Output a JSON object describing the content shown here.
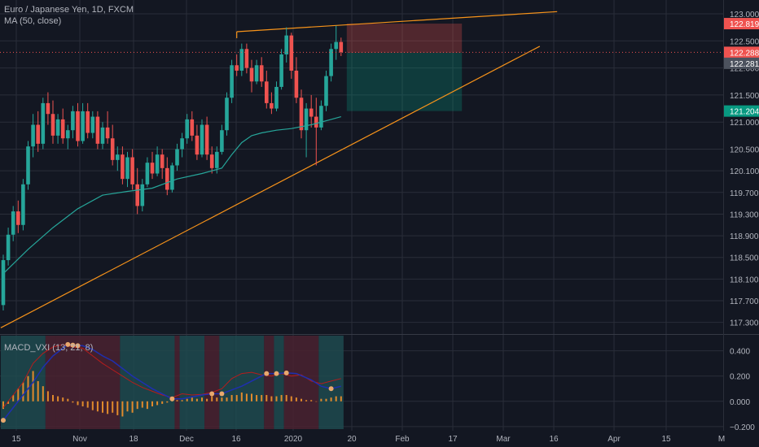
{
  "title": "Euro / Japanese Yen, 1D, FXCM",
  "ma_label": "MA (50, close)",
  "macd_label": "MACD_VXI (13, 21, 8)",
  "colors": {
    "background": "#131722",
    "grid": "#2a2e39",
    "up": "#26a69a",
    "down": "#ef5350",
    "ma": "#26a69a",
    "trendline": "#f7931a",
    "price_line": "#ef5350",
    "text": "#b2b5be",
    "macd_line": "#1e2fb0",
    "signal_line": "#b71c1c",
    "marker": "#e8a86d",
    "bull_zone": "#1f4a4f",
    "bear_zone": "#4a2230"
  },
  "chart_data": [
    {
      "type": "candlestick",
      "title": "Euro / Japanese Yen, 1D, FXCM",
      "x_ticks": [
        "15",
        "Nov",
        "18",
        "Dec",
        "16",
        "2020",
        "20",
        "Feb",
        "17",
        "Mar",
        "16",
        "Apr",
        "15",
        "M"
      ],
      "y_ticks": [
        117.3,
        117.7,
        118.1,
        118.5,
        118.9,
        119.3,
        119.7,
        120.1,
        120.5,
        121.0,
        121.5,
        122.0,
        122.5,
        123.0
      ],
      "y_tick_labels": [
        "117.300",
        "117.700",
        "118.100",
        "118.500",
        "118.900",
        "119.300",
        "119.700",
        "120.100",
        "120.500",
        "121.000",
        "121.500",
        "122.000",
        "122.500",
        "123.000"
      ],
      "ylim": [
        117.1,
        123.15
      ],
      "ohlc": [
        [
          117.62,
          118.55,
          117.52,
          118.45
        ],
        [
          118.45,
          119.05,
          118.35,
          118.92
        ],
        [
          118.92,
          119.45,
          118.8,
          119.35
        ],
        [
          119.35,
          119.55,
          118.95,
          119.1
        ],
        [
          119.1,
          119.95,
          119.0,
          119.85
        ],
        [
          119.85,
          120.65,
          119.75,
          120.55
        ],
        [
          120.55,
          121.15,
          120.35,
          120.95
        ],
        [
          120.95,
          121.2,
          120.45,
          120.6
        ],
        [
          120.6,
          121.45,
          120.5,
          121.35
        ],
        [
          121.35,
          121.55,
          120.95,
          121.15
        ],
        [
          121.15,
          121.4,
          120.6,
          120.75
        ],
        [
          120.75,
          121.15,
          120.6,
          121.05
        ],
        [
          121.05,
          121.25,
          120.6,
          120.7
        ],
        [
          120.7,
          120.95,
          120.5,
          120.85
        ],
        [
          120.85,
          121.3,
          120.7,
          121.2
        ],
        [
          121.2,
          121.35,
          120.55,
          120.65
        ],
        [
          120.65,
          121.35,
          120.6,
          121.2
        ],
        [
          121.2,
          121.35,
          120.7,
          120.8
        ],
        [
          120.8,
          121.2,
          120.7,
          121.1
        ],
        [
          121.1,
          121.2,
          120.5,
          120.6
        ],
        [
          120.6,
          121.0,
          120.5,
          120.9
        ],
        [
          120.9,
          121.2,
          120.6,
          120.7
        ],
        [
          120.7,
          120.95,
          120.2,
          120.3
        ],
        [
          120.3,
          120.55,
          120.1,
          120.4
        ],
        [
          120.4,
          120.55,
          119.85,
          119.95
        ],
        [
          119.95,
          120.45,
          119.8,
          120.35
        ],
        [
          120.35,
          120.5,
          119.75,
          119.85
        ],
        [
          119.85,
          120.15,
          119.3,
          119.45
        ],
        [
          119.45,
          119.95,
          119.35,
          119.85
        ],
        [
          119.85,
          120.35,
          119.8,
          120.25
        ],
        [
          120.25,
          120.45,
          119.95,
          120.05
        ],
        [
          120.05,
          120.55,
          120.0,
          120.4
        ],
        [
          120.4,
          120.5,
          119.95,
          120.15
        ],
        [
          120.15,
          120.35,
          119.65,
          119.75
        ],
        [
          119.75,
          120.25,
          119.7,
          120.2
        ],
        [
          120.2,
          120.6,
          120.1,
          120.5
        ],
        [
          120.5,
          120.8,
          120.35,
          120.7
        ],
        [
          120.7,
          121.15,
          120.6,
          121.05
        ],
        [
          121.05,
          121.2,
          120.65,
          120.75
        ],
        [
          120.75,
          120.95,
          120.3,
          120.4
        ],
        [
          120.4,
          121.05,
          120.35,
          120.95
        ],
        [
          120.95,
          121.1,
          120.3,
          120.4
        ],
        [
          120.4,
          120.55,
          120.05,
          120.15
        ],
        [
          120.15,
          120.55,
          120.05,
          120.45
        ],
        [
          120.45,
          120.95,
          120.4,
          120.85
        ],
        [
          120.85,
          121.55,
          120.75,
          121.45
        ],
        [
          121.45,
          122.15,
          121.35,
          122.05
        ],
        [
          122.05,
          122.25,
          121.85,
          121.95
        ],
        [
          121.95,
          122.45,
          121.85,
          122.35
        ],
        [
          122.35,
          122.45,
          121.9,
          122.0
        ],
        [
          122.0,
          122.15,
          121.55,
          121.75
        ],
        [
          121.75,
          122.15,
          121.7,
          122.05
        ],
        [
          122.05,
          122.2,
          121.65,
          121.75
        ],
        [
          121.75,
          121.95,
          121.25,
          121.35
        ],
        [
          121.35,
          121.55,
          121.15,
          121.25
        ],
        [
          121.25,
          121.75,
          121.2,
          121.65
        ],
        [
          121.65,
          122.35,
          121.6,
          122.25
        ],
        [
          122.25,
          122.75,
          122.1,
          122.6
        ],
        [
          122.6,
          122.65,
          121.8,
          121.95
        ],
        [
          121.95,
          122.2,
          121.35,
          121.45
        ],
        [
          121.45,
          121.6,
          120.7,
          120.85
        ],
        [
          120.85,
          121.35,
          120.35,
          121.25
        ],
        [
          121.25,
          121.5,
          120.9,
          121.1
        ],
        [
          121.1,
          121.45,
          120.2,
          120.9
        ],
        [
          120.9,
          121.4,
          120.85,
          121.3
        ],
        [
          121.3,
          121.95,
          121.2,
          121.85
        ],
        [
          121.85,
          122.45,
          121.75,
          122.35
        ],
        [
          122.35,
          122.78,
          122.15,
          122.48
        ],
        [
          122.48,
          122.56,
          122.22,
          122.29
        ]
      ],
      "ma": [
        [
          0,
          118.2
        ],
        [
          5,
          118.65
        ],
        [
          10,
          119.05
        ],
        [
          15,
          119.4
        ],
        [
          20,
          119.65
        ],
        [
          25,
          119.72
        ],
        [
          30,
          119.78
        ],
        [
          35,
          119.95
        ],
        [
          40,
          120.05
        ],
        [
          44,
          120.15
        ],
        [
          46,
          120.4
        ],
        [
          48,
          120.62
        ],
        [
          50,
          120.75
        ],
        [
          52,
          120.8
        ],
        [
          55,
          120.85
        ],
        [
          58,
          120.88
        ],
        [
          62,
          120.95
        ],
        [
          66,
          121.05
        ],
        [
          68,
          121.1
        ]
      ],
      "trendlines": [
        {
          "from": [
            -0.5,
            117.2
          ],
          "to": [
            108,
            122.4
          ]
        },
        {
          "from": [
            47,
            122.67
          ],
          "to": [
            111.5,
            123.04
          ]
        }
      ],
      "position": {
        "entry": 122.281,
        "target": 121.204,
        "stop": 122.819,
        "start": 68,
        "end": 92
      },
      "price_labels": [
        {
          "value": 122.819,
          "text": "122.819",
          "bg": "#ef5350",
          "fg": "#ffffff"
        },
        {
          "value": 122.288,
          "text": "122.288",
          "bg": "#ef5350",
          "fg": "#ffffff"
        },
        {
          "value": 122.281,
          "text": "122.281",
          "bg": "#4c525e",
          "fg": "#ffffff"
        },
        {
          "value": 121.204,
          "text": "121.204",
          "bg": "#089981",
          "fg": "#ffffff"
        }
      ],
      "last_price": 122.288,
      "series": [
        {
          "name": "Euro / Japanese Yen, 1D, FXCM"
        },
        {
          "name": "MA (50, close)"
        }
      ]
    },
    {
      "type": "line",
      "title": "MACD_VXI (13, 21, 8)",
      "y_ticks": [
        0.4,
        0.2,
        0.0,
        -0.2
      ],
      "y_tick_labels": [
        "0.400",
        "0.200",
        "0.000",
        "−0.200"
      ],
      "ylim": [
        -0.22,
        0.52
      ],
      "macd": [
        [
          0,
          -0.15
        ],
        [
          2,
          -0.05
        ],
        [
          4,
          0.05
        ],
        [
          6,
          0.15
        ],
        [
          8,
          0.27
        ],
        [
          10,
          0.36
        ],
        [
          12,
          0.42
        ],
        [
          13,
          0.45
        ],
        [
          14,
          0.445
        ],
        [
          16,
          0.44
        ],
        [
          18,
          0.41
        ],
        [
          20,
          0.36
        ],
        [
          22,
          0.32
        ],
        [
          24,
          0.26
        ],
        [
          26,
          0.2
        ],
        [
          28,
          0.15
        ],
        [
          30,
          0.1
        ],
        [
          32,
          0.06
        ],
        [
          34,
          0.02
        ],
        [
          35,
          0.02
        ],
        [
          36,
          0.02
        ],
        [
          38,
          0.035
        ],
        [
          40,
          0.05
        ],
        [
          42,
          0.06
        ],
        [
          44,
          0.06
        ],
        [
          46,
          0.09
        ],
        [
          48,
          0.12
        ],
        [
          50,
          0.16
        ],
        [
          52,
          0.2
        ],
        [
          53,
          0.22
        ],
        [
          55,
          0.22
        ],
        [
          57,
          0.225
        ],
        [
          59,
          0.22
        ],
        [
          62,
          0.17
        ],
        [
          64,
          0.12
        ],
        [
          66,
          0.1
        ],
        [
          68,
          0.12
        ]
      ],
      "signal": [
        [
          0,
          -0.05
        ],
        [
          2,
          0.05
        ],
        [
          4,
          0.15
        ],
        [
          6,
          0.3
        ],
        [
          8,
          0.38
        ],
        [
          10,
          0.43
        ],
        [
          12,
          0.45
        ],
        [
          14,
          0.43
        ],
        [
          16,
          0.42
        ],
        [
          18,
          0.36
        ],
        [
          20,
          0.3
        ],
        [
          22,
          0.25
        ],
        [
          24,
          0.2
        ],
        [
          26,
          0.15
        ],
        [
          28,
          0.11
        ],
        [
          30,
          0.08
        ],
        [
          32,
          0.05
        ],
        [
          34,
          0.03
        ],
        [
          36,
          0.06
        ],
        [
          38,
          0.05
        ],
        [
          40,
          0.055
        ],
        [
          42,
          0.07
        ],
        [
          44,
          0.1
        ],
        [
          46,
          0.18
        ],
        [
          48,
          0.22
        ],
        [
          50,
          0.23
        ],
        [
          52,
          0.21
        ],
        [
          54,
          0.2
        ],
        [
          56,
          0.22
        ],
        [
          58,
          0.2
        ],
        [
          60,
          0.21
        ],
        [
          62,
          0.16
        ],
        [
          64,
          0.14
        ],
        [
          66,
          0.16
        ],
        [
          68,
          0.18
        ]
      ],
      "histogram": [
        [
          0,
          -0.06
        ],
        [
          1,
          -0.02
        ],
        [
          2,
          0.05
        ],
        [
          3,
          0.1
        ],
        [
          4,
          0.15
        ],
        [
          5,
          0.2
        ],
        [
          6,
          0.24
        ],
        [
          7,
          0.16
        ],
        [
          8,
          0.12
        ],
        [
          9,
          0.08
        ],
        [
          10,
          0.05
        ],
        [
          11,
          0.04
        ],
        [
          12,
          0.03
        ],
        [
          13,
          0.02
        ],
        [
          14,
          -0.01
        ],
        [
          15,
          -0.03
        ],
        [
          16,
          -0.04
        ],
        [
          17,
          -0.05
        ],
        [
          18,
          -0.07
        ],
        [
          19,
          -0.08
        ],
        [
          20,
          -0.09
        ],
        [
          21,
          -0.1
        ],
        [
          22,
          -0.09
        ],
        [
          23,
          -0.11
        ],
        [
          24,
          -0.12
        ],
        [
          25,
          -0.08
        ],
        [
          26,
          -0.09
        ],
        [
          27,
          -0.06
        ],
        [
          28,
          -0.05
        ],
        [
          29,
          -0.06
        ],
        [
          30,
          -0.04
        ],
        [
          31,
          -0.03
        ],
        [
          32,
          -0.02
        ],
        [
          33,
          -0.01
        ],
        [
          34,
          0.01
        ],
        [
          35,
          0.01
        ],
        [
          36,
          0.01
        ],
        [
          37,
          0.02
        ],
        [
          38,
          0.03
        ],
        [
          39,
          0.02
        ],
        [
          40,
          0.03
        ],
        [
          41,
          0.02
        ],
        [
          42,
          0.04
        ],
        [
          43,
          0.03
        ],
        [
          44,
          0.03
        ],
        [
          45,
          0.03
        ],
        [
          46,
          0.05
        ],
        [
          47,
          0.05
        ],
        [
          48,
          0.07
        ],
        [
          49,
          0.06
        ],
        [
          50,
          0.06
        ],
        [
          51,
          0.05
        ],
        [
          52,
          0.05
        ],
        [
          53,
          0.05
        ],
        [
          54,
          0.04
        ],
        [
          55,
          0.04
        ],
        [
          56,
          0.05
        ],
        [
          57,
          0.05
        ],
        [
          58,
          0.04
        ],
        [
          59,
          0.03
        ],
        [
          60,
          0.02
        ],
        [
          61,
          0.01
        ],
        [
          62,
          0.01
        ],
        [
          63,
          0.0
        ],
        [
          64,
          0.02
        ],
        [
          65,
          0.02
        ],
        [
          66,
          0.03
        ],
        [
          67,
          0.04
        ],
        [
          68,
          0.04
        ]
      ],
      "zones": [
        [
          -0.5,
          8.5,
          "bull"
        ],
        [
          8.5,
          10.5,
          "bear"
        ],
        [
          10.5,
          23.5,
          "bear"
        ],
        [
          23.5,
          34.5,
          "bull"
        ],
        [
          34.5,
          35.5,
          "bear"
        ],
        [
          35.5,
          40.5,
          "bull"
        ],
        [
          40.5,
          43.5,
          "bear"
        ],
        [
          43.5,
          46.5,
          "bull"
        ],
        [
          46.5,
          52.5,
          "bull"
        ],
        [
          52.5,
          54.5,
          "bear"
        ],
        [
          54.5,
          56.5,
          "bull"
        ],
        [
          56.5,
          63.5,
          "bear"
        ],
        [
          63.5,
          68.5,
          "bull"
        ]
      ],
      "markers": [
        [
          0,
          -0.15
        ],
        [
          13,
          0.45
        ],
        [
          14,
          0.445
        ],
        [
          15,
          0.44
        ],
        [
          34,
          0.02
        ],
        [
          42,
          0.06
        ],
        [
          44,
          0.06
        ],
        [
          53,
          0.22
        ],
        [
          55,
          0.22
        ],
        [
          57,
          0.225
        ],
        [
          66,
          0.1
        ]
      ]
    }
  ]
}
